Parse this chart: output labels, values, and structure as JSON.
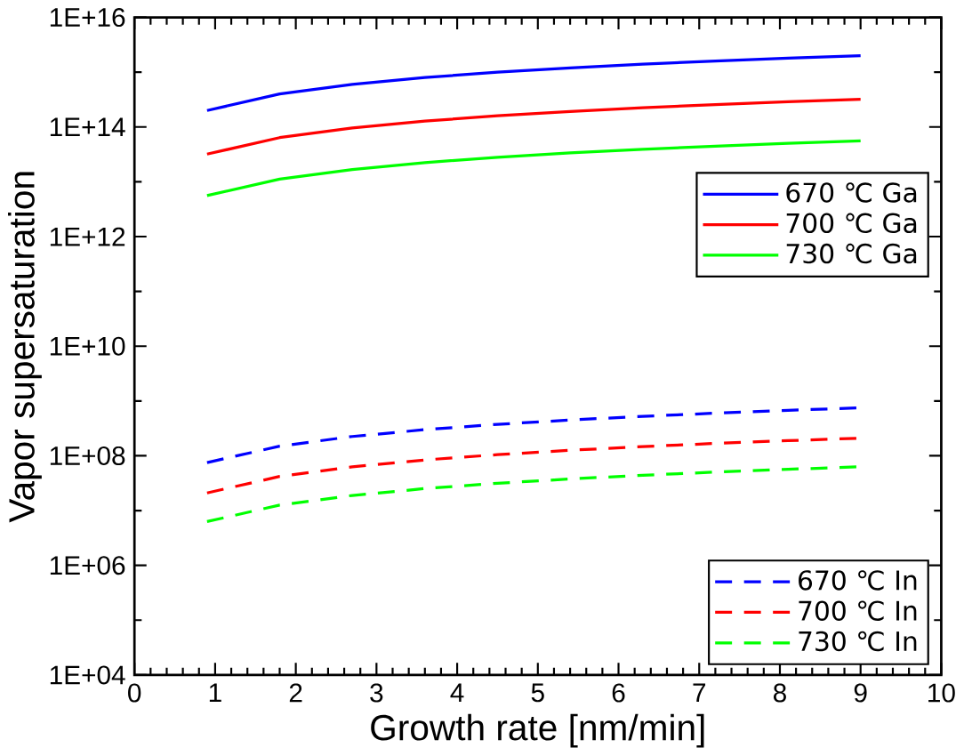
{
  "chart_data": {
    "type": "line",
    "xlabel": "Growth rate [nm/min]",
    "ylabel": "Vapor supersaturation",
    "x": [
      0.9,
      1.8,
      2.7,
      3.6,
      4.5,
      5.4,
      6.3,
      7.2,
      8.1,
      9.0
    ],
    "series": [
      {
        "name": "670 ℃ Ga",
        "color": "#0000ff",
        "values": [
          200000000000000.0,
          400000000000000.0,
          600000000000000.0,
          800000000000000.0,
          1000000000000000.0,
          1200000000000000.0,
          1400000000000000.0,
          1600000000000000.0,
          1800000000000000.0,
          2000000000000000.0
        ]
      },
      {
        "name": "700 ℃ Ga",
        "color": "#ff0000",
        "values": [
          32000000000000.0,
          64000000000000.0,
          96000000000000.0,
          128000000000000.0,
          160000000000000.0,
          192000000000000.0,
          224000000000000.0,
          256000000000000.0,
          288000000000000.0,
          320000000000000.0
        ]
      },
      {
        "name": "730 ℃ Ga",
        "color": "#00ff00",
        "values": [
          5600000000000.0,
          11200000000000.0,
          16800000000000.0,
          22400000000000.0,
          28000000000000.0,
          33600000000000.0,
          39200000000000.0,
          44800000000000.0,
          50400000000000.0,
          56000000000000.0
        ]
      },
      {
        "name": "670 ℃ In",
        "color": "#0000ff",
        "line_style": "dashed",
        "values": [
          75000000.0,
          150000000.0,
          225000000.0,
          300000000.0,
          375000000.0,
          450000000.0,
          525000000.0,
          600000000.0,
          675000000.0,
          750000000.0
        ]
      },
      {
        "name": "700 ℃ In",
        "color": "#ff0000",
        "line_style": "dashed",
        "values": [
          21000000.0,
          42000000.0,
          63000000.0,
          84000000.0,
          105000000.0,
          126000000.0,
          147000000.0,
          168000000.0,
          189000000.0,
          210000000.0
        ]
      },
      {
        "name": "730 ℃ In",
        "color": "#00ff00",
        "line_style": "dashed",
        "values": [
          6300000.0,
          12600000.0,
          18900000.0,
          25200000.0,
          31500000.0,
          37800000.0,
          44100000.0,
          50400000.0,
          56700000.0,
          63000000.0
        ]
      }
    ],
    "line_style": "solid",
    "marker": "none",
    "log": "y",
    "grid": false,
    "legend": "right",
    "xlim": [
      0,
      10
    ],
    "xticks": [
      0,
      1,
      2,
      3,
      4,
      5,
      6,
      7,
      8,
      9,
      10
    ],
    "ylim": [
      10000.0,
      1e+16
    ],
    "yticks": [
      {
        "value": 10000.0,
        "label": "1E+04"
      },
      {
        "value": 1000000.0,
        "label": "1E+06"
      },
      {
        "value": 100000000.0,
        "label": "1E+08"
      },
      {
        "value": 10000000000.0,
        "label": "1E+10"
      },
      {
        "value": 1000000000000.0,
        "label": "1E+12"
      },
      {
        "value": 100000000000000.0,
        "label": "1E+14"
      },
      {
        "value": 1e+16,
        "label": "1E+16"
      }
    ]
  }
}
